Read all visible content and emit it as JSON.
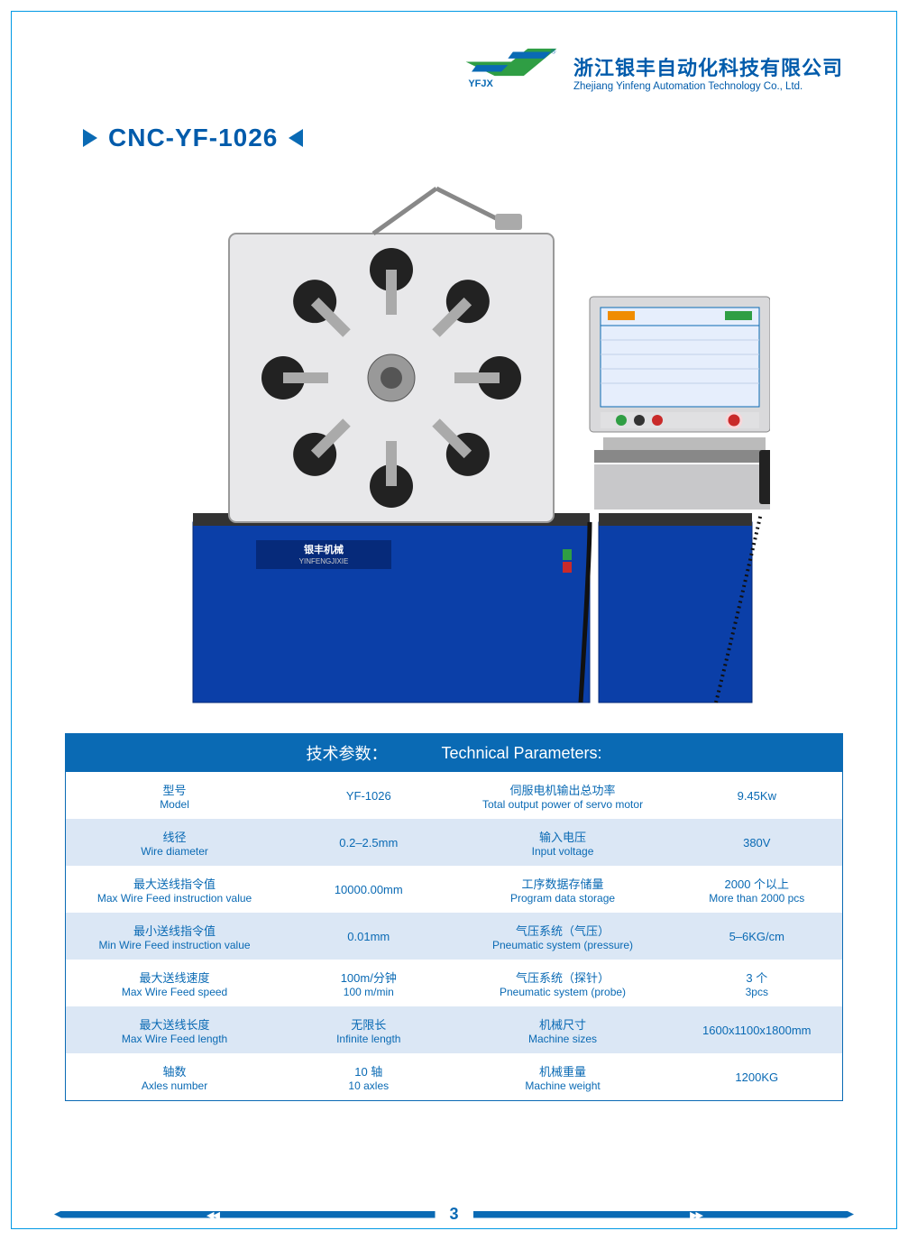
{
  "company": {
    "logo_label": "YFJX",
    "name_cn": "浙江银丰自动化科技有限公司",
    "name_en": "Zhejiang Yinfeng Automation Technology Co., Ltd."
  },
  "product": {
    "title": "CNC-YF-1026",
    "machine_label_cn": "银丰机械",
    "machine_label_en": "YINFENGJIXIE"
  },
  "colors": {
    "brand_blue": "#0a6ab4",
    "brand_green": "#2f9e44",
    "light_row": "#dbe7f5",
    "machine_blue": "#0b3fa8",
    "machine_panel": "#e8e8ea"
  },
  "table": {
    "title_cn": "技术参数：",
    "title_en": "Technical Parameters:",
    "rows": [
      {
        "l_cn": "型号",
        "l_en": "Model",
        "l_val": "YF-1026",
        "r_cn": "伺服电机输出总功率",
        "r_en": "Total output power of servo motor",
        "r_val": "9.45Kw"
      },
      {
        "l_cn": "线径",
        "l_en": "Wire diameter",
        "l_val": "0.2–2.5mm",
        "r_cn": "输入电压",
        "r_en": "Input voltage",
        "r_val": "380V"
      },
      {
        "l_cn": "最大送线指令值",
        "l_en": "Max Wire Feed instruction value",
        "l_val": "10000.00mm",
        "r_cn": "工序数据存储量",
        "r_en": "Program data storage",
        "r_val_cn": "2000 个以上",
        "r_val_en": "More than 2000 pcs"
      },
      {
        "l_cn": "最小送线指令值",
        "l_en": "Min Wire Feed instruction value",
        "l_val": "0.01mm",
        "r_cn": "气压系统（气压）",
        "r_en": "Pneumatic system (pressure)",
        "r_val": "5–6KG/cm"
      },
      {
        "l_cn": "最大送线速度",
        "l_en": "Max Wire Feed speed",
        "l_val_cn": "100m/分钟",
        "l_val_en": "100 m/min",
        "r_cn": "气压系统（探针）",
        "r_en": "Pneumatic system (probe)",
        "r_val_cn": "3 个",
        "r_val_en": "3pcs"
      },
      {
        "l_cn": "最大送线长度",
        "l_en": "Max Wire Feed length",
        "l_val_cn": "无限长",
        "l_val_en": "Infinite length",
        "r_cn": "机械尺寸",
        "r_en": "Machine sizes",
        "r_val": "1600x1100x1800mm"
      },
      {
        "l_cn": "轴数",
        "l_en": "Axles number",
        "l_val_cn": "10 轴",
        "l_val_en": "10 axles",
        "r_cn": "机械重量",
        "r_en": "Machine weight",
        "r_val": "1200KG"
      }
    ]
  },
  "page_number": "3"
}
